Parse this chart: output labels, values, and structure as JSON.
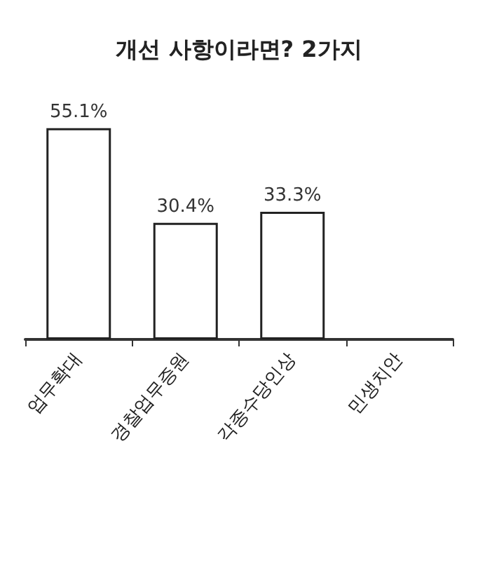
{
  "chart_data": {
    "type": "bar",
    "title": "개선 사항이라면? 2가지",
    "categories": [
      "업무확대",
      "경찰업무증원",
      "각종수당인상",
      "민생치안"
    ],
    "values": [
      55.1,
      30.4,
      33.3,
      null
    ],
    "value_labels": [
      "55.1%",
      "30.4%",
      "33.3%",
      null
    ],
    "color": "#ffffff",
    "grid": false
  }
}
